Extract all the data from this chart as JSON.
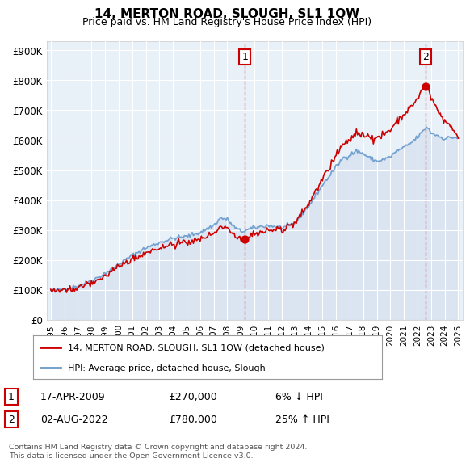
{
  "title": "14, MERTON ROAD, SLOUGH, SL1 1QW",
  "subtitle": "Price paid vs. HM Land Registry's House Price Index (HPI)",
  "hpi_label": "HPI: Average price, detached house, Slough",
  "price_label": "14, MERTON ROAD, SLOUGH, SL1 1QW (detached house)",
  "footnote": "Contains HM Land Registry data © Crown copyright and database right 2024.\nThis data is licensed under the Open Government Licence v3.0.",
  "table_rows": [
    {
      "num": "1",
      "date": "17-APR-2009",
      "price": "£270,000",
      "hpi": "6% ↓ HPI"
    },
    {
      "num": "2",
      "date": "02-AUG-2022",
      "price": "£780,000",
      "hpi": "25% ↑ HPI"
    }
  ],
  "sale1_year": 2009.29,
  "sale1_price": 270000,
  "sale2_year": 2022.58,
  "sale2_price": 780000,
  "year_start": 1995,
  "year_end": 2025,
  "ylim_max": 930000,
  "plot_bg": "#e8f0f8",
  "line_color_price": "#cc0000",
  "line_color_hpi": "#6699cc",
  "grid_color": "#ffffff"
}
